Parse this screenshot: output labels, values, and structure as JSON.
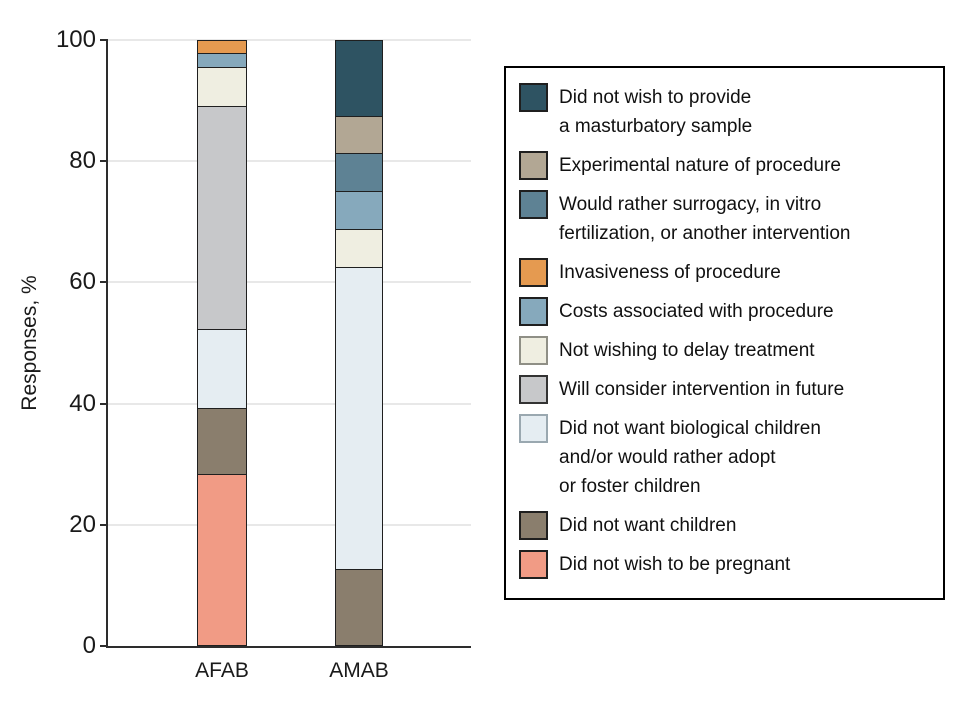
{
  "chart_data": {
    "type": "bar",
    "stacked": true,
    "title": "",
    "xlabel": "",
    "ylabel": "Responses, %",
    "ylim": [
      0,
      100
    ],
    "y_ticks": [
      0,
      20,
      40,
      60,
      80,
      100
    ],
    "grid": true,
    "legend_position": "right",
    "categories": [
      "AFAB",
      "AMAB"
    ],
    "series": [
      {
        "name": "Did not wish to provide a masturbatory sample",
        "label": "Did not wish to provide\na masturbatory sample",
        "color": "#2E5362",
        "border": "#1f1f1f",
        "values": [
          0,
          12.5
        ]
      },
      {
        "name": "Experimental nature of procedure",
        "label": "Experimental nature of procedure",
        "color": "#B2A794",
        "border": "#1f1f1f",
        "values": [
          0,
          6.25
        ]
      },
      {
        "name": "Would rather surrogacy, in vitro fertilization, or another intervention",
        "label": "Would rather surrogacy, in vitro\nfertilization, or another intervention",
        "color": "#5E8294",
        "border": "#1f1f1f",
        "values": [
          0,
          6.25
        ]
      },
      {
        "name": "Invasiveness of procedure",
        "label": "Invasiveness of procedure",
        "color": "#E59A50",
        "border": "#1f1f1f",
        "values": [
          2.2,
          0
        ]
      },
      {
        "name": "Costs associated with procedure",
        "label": "Costs associated with procedure",
        "color": "#86A9BC",
        "border": "#1f1f1f",
        "values": [
          2.2,
          6.25
        ]
      },
      {
        "name": "Not wishing to delay treatment",
        "label": "Not wishing to delay treatment",
        "color": "#EFEEE1",
        "border": "#8f8f86",
        "values": [
          6.5,
          6.25
        ]
      },
      {
        "name": "Will consider intervention in future",
        "label": "Will consider intervention in future",
        "color": "#C7C8CA",
        "border": "#333333",
        "values": [
          37,
          0
        ]
      },
      {
        "name": "Did not want biological children and/or would rather adopt or foster children",
        "label": "Did not want biological children\nand/or would rather adopt\nor foster children",
        "color": "#E5EDF2",
        "border": "#9aa8b0",
        "values": [
          13,
          50
        ]
      },
      {
        "name": "Did not want children",
        "label": "Did not want children",
        "color": "#8A7E6D",
        "border": "#1f1f1f",
        "values": [
          10.9,
          12.5
        ]
      },
      {
        "name": "Did not wish to be pregnant",
        "label": "Did not wish to be pregnant",
        "color": "#F19B85",
        "border": "#1f1f1f",
        "values": [
          28.2,
          0
        ]
      }
    ]
  }
}
